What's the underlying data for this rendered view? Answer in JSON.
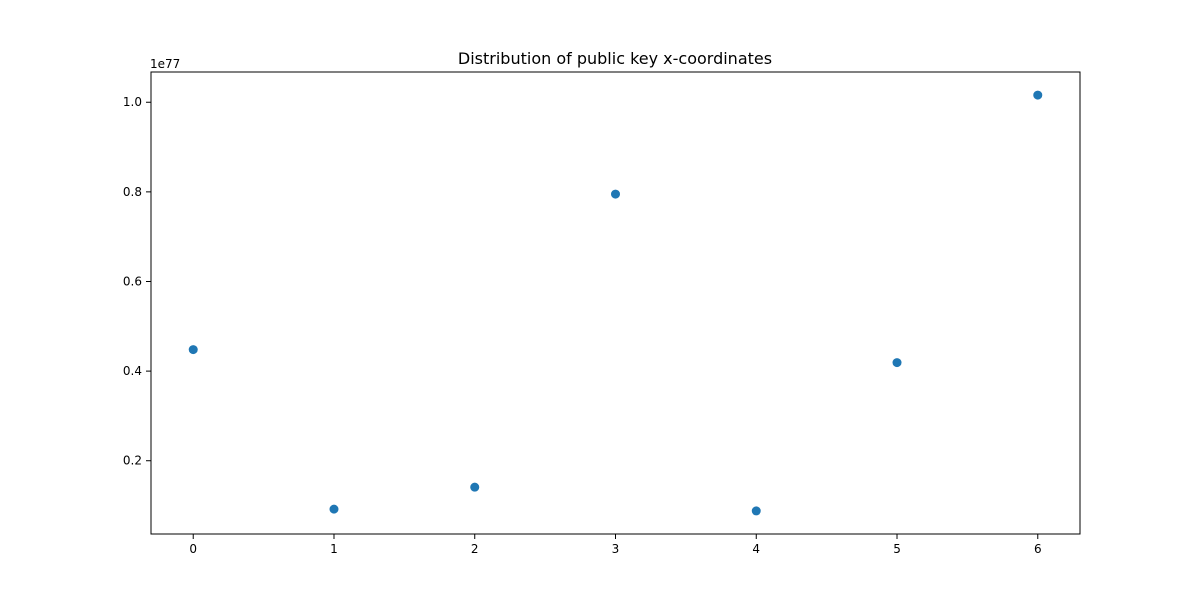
{
  "chart_data": {
    "type": "scatter",
    "title": "Distribution of public key x-coordinates",
    "xlabel": "",
    "ylabel": "",
    "offset_label": "1e77",
    "x": [
      0,
      1,
      2,
      3,
      4,
      5,
      6
    ],
    "y": [
      0.448,
      0.092,
      0.141,
      0.795,
      0.088,
      0.419,
      1.016
    ],
    "y_scale_exponent": 77,
    "xlim": [
      -0.3,
      6.3
    ],
    "ylim": [
      0.0365,
      1.0675
    ],
    "x_ticks": [
      0,
      1,
      2,
      3,
      4,
      5,
      6
    ],
    "x_tick_labels": [
      "0",
      "1",
      "2",
      "3",
      "4",
      "5",
      "6"
    ],
    "y_ticks": [
      0.2,
      0.4,
      0.6,
      0.8,
      1.0
    ],
    "y_tick_labels": [
      "0.2",
      "0.4",
      "0.6",
      "0.8",
      "1.0"
    ],
    "grid": false,
    "legend": "none",
    "color": "#1f77b4"
  }
}
